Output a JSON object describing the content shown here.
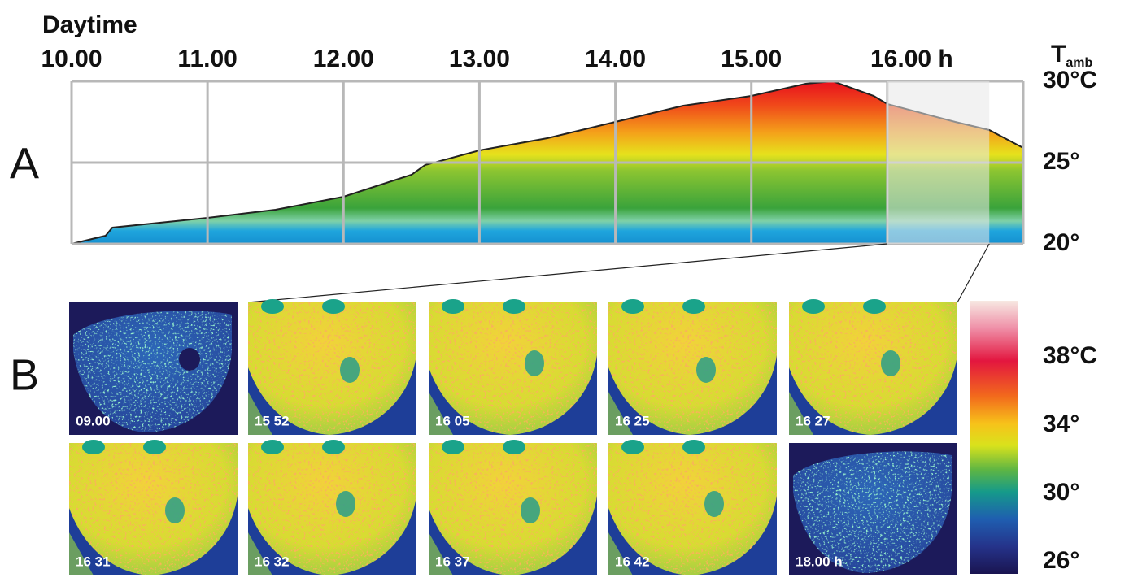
{
  "chart_data": {
    "type": "area",
    "panel_a_letter": "A",
    "panel_b_letter": "B",
    "title": "Daytime",
    "y_label": {
      "main": "T",
      "sub": "amb"
    },
    "x": [
      10.0,
      10.25,
      10.3,
      11.0,
      11.5,
      12.0,
      12.5,
      12.6,
      13.0,
      13.5,
      14.0,
      14.5,
      15.0,
      15.4,
      15.6,
      15.9,
      16.0,
      16.5,
      16.75,
      17.0
    ],
    "values": [
      20.0,
      20.5,
      21.0,
      21.6,
      22.1,
      22.9,
      24.25,
      24.85,
      25.75,
      26.5,
      27.5,
      28.5,
      29.1,
      29.85,
      30.0,
      29.1,
      28.6,
      27.5,
      27.0,
      25.9
    ],
    "xlim": [
      10,
      17
    ],
    "xticks": [
      {
        "value": 10,
        "label": "10.00"
      },
      {
        "value": 11,
        "label": "11.00"
      },
      {
        "value": 12,
        "label": "12.00"
      },
      {
        "value": 13,
        "label": "13.00"
      },
      {
        "value": 14,
        "label": "14.00"
      },
      {
        "value": 15,
        "label": "15.00"
      },
      {
        "value": 16,
        "label": "16.00 h"
      }
    ],
    "ylim": [
      20,
      30
    ],
    "yticks": [
      {
        "value": 30,
        "label": "30°C"
      },
      {
        "value": 25,
        "label": "25°"
      },
      {
        "value": 20,
        "label": "20°"
      }
    ],
    "grid": true,
    "highlight_range": [
      16,
      16.75
    ],
    "images": [
      "09.00",
      "15 52",
      "16 05",
      "16 25",
      "16 27",
      "16 31",
      "16 32",
      "16 37",
      "16 42",
      "18.00 h"
    ],
    "colorbar_lim": [
      25.3,
      41.3
    ],
    "colorbar_ticks": [
      {
        "value": 38,
        "label": "38°C"
      },
      {
        "value": 34,
        "label": "34°"
      },
      {
        "value": 30,
        "label": "30°"
      },
      {
        "value": 26,
        "label": "26°"
      }
    ]
  }
}
